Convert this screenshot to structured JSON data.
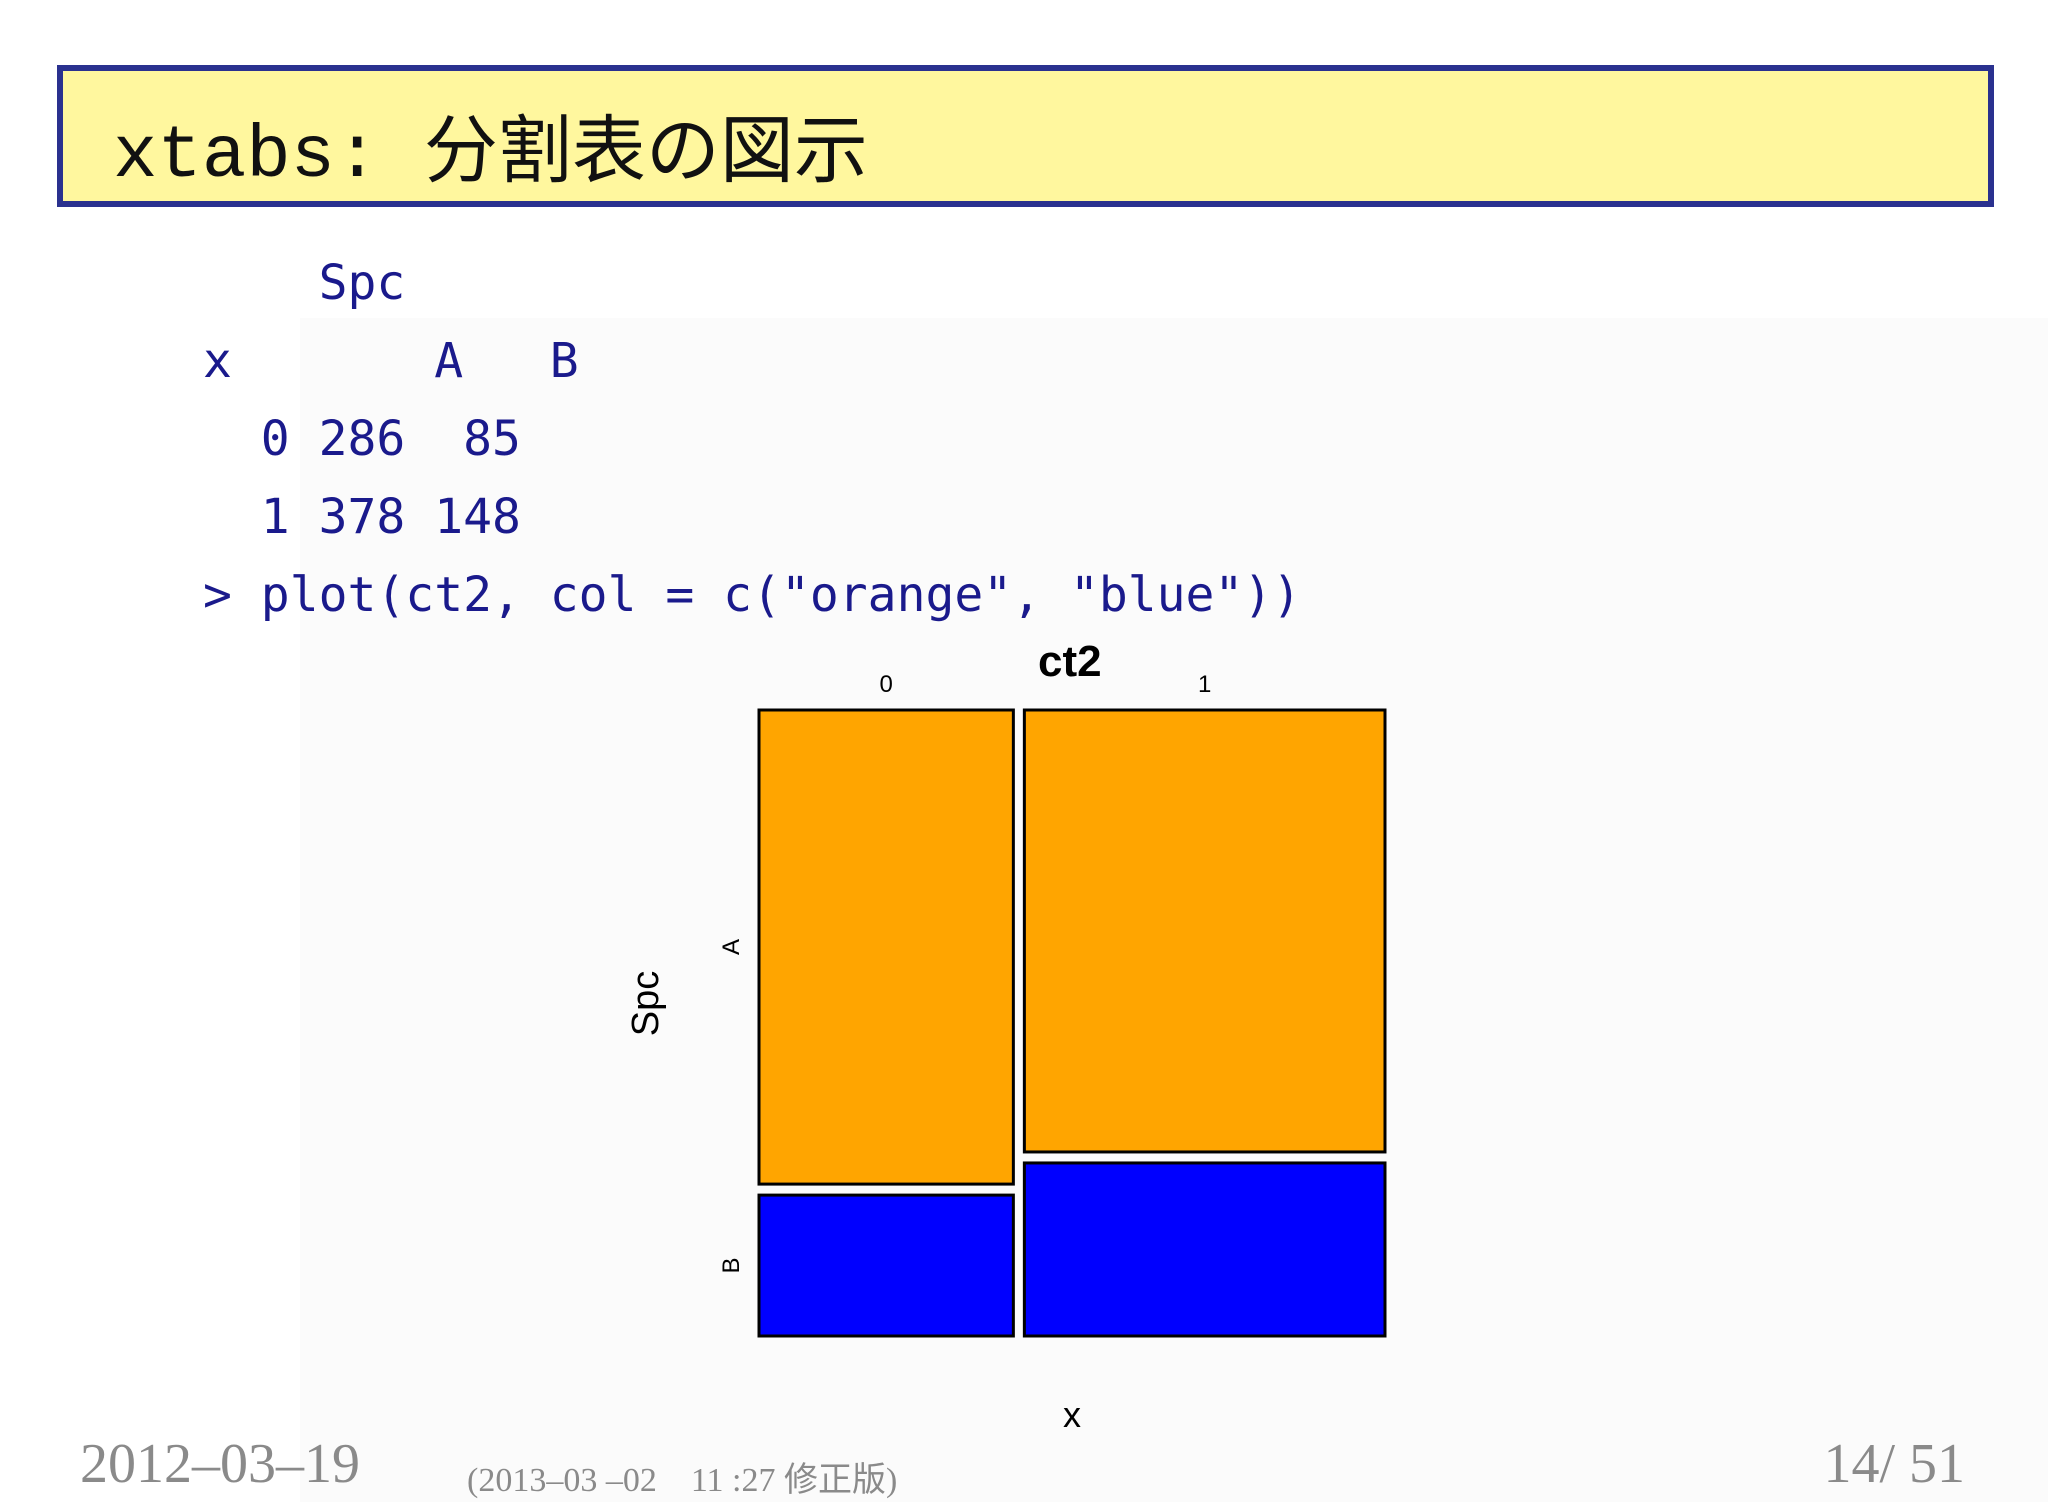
{
  "slide": {
    "title": "xtabs: 分割表の図示"
  },
  "code": {
    "line1": "    Spc",
    "line2": "x       A   B",
    "line3": "  0 286  85",
    "line4": "  1 378 148",
    "line5": "> plot(ct2, col = c(\"orange\", \"blue\"))"
  },
  "chart_data": {
    "type": "mosaic",
    "title": "ct2",
    "xlabel": "x",
    "ylabel": "Spc",
    "x_categories": [
      "0",
      "1"
    ],
    "y_categories": [
      "A",
      "B"
    ],
    "counts": [
      {
        "x": "0",
        "A": 286,
        "B": 85
      },
      {
        "x": "1",
        "A": 378,
        "B": 148
      }
    ],
    "colors": {
      "A": "#ffa500",
      "B": "#0000ff"
    }
  },
  "footer": {
    "date": "2012–03–19",
    "revision": "(2013–03 –02　11 :27 修正版)",
    "page": "14/ 51"
  }
}
